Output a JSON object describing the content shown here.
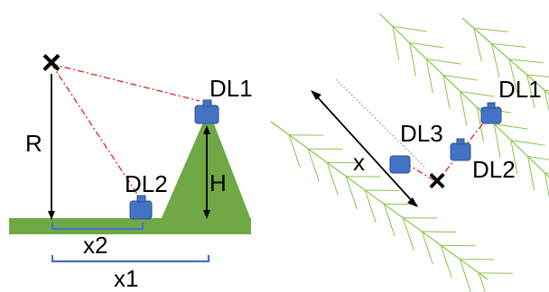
{
  "colors": {
    "ground": "#6fa845",
    "hill": "#6fa845",
    "logger": "#4472c4",
    "logger_edge": "#2f528f",
    "bracket": "#4472c4",
    "sight_line": "#e0322c",
    "tree": "#8bc34a",
    "arrow": "#000000",
    "gray_line": "#999999"
  },
  "left_panel": {
    "source_marker": "×",
    "labels": {
      "r": "R",
      "h": "H",
      "dl1": "DL1",
      "dl2": "DL2",
      "x2": "x2",
      "x1": "x1"
    }
  },
  "right_panel": {
    "source_marker": "×",
    "labels": {
      "x": "x",
      "dl1": "DL1",
      "dl2": "DL2",
      "dl3": "DL3"
    }
  }
}
